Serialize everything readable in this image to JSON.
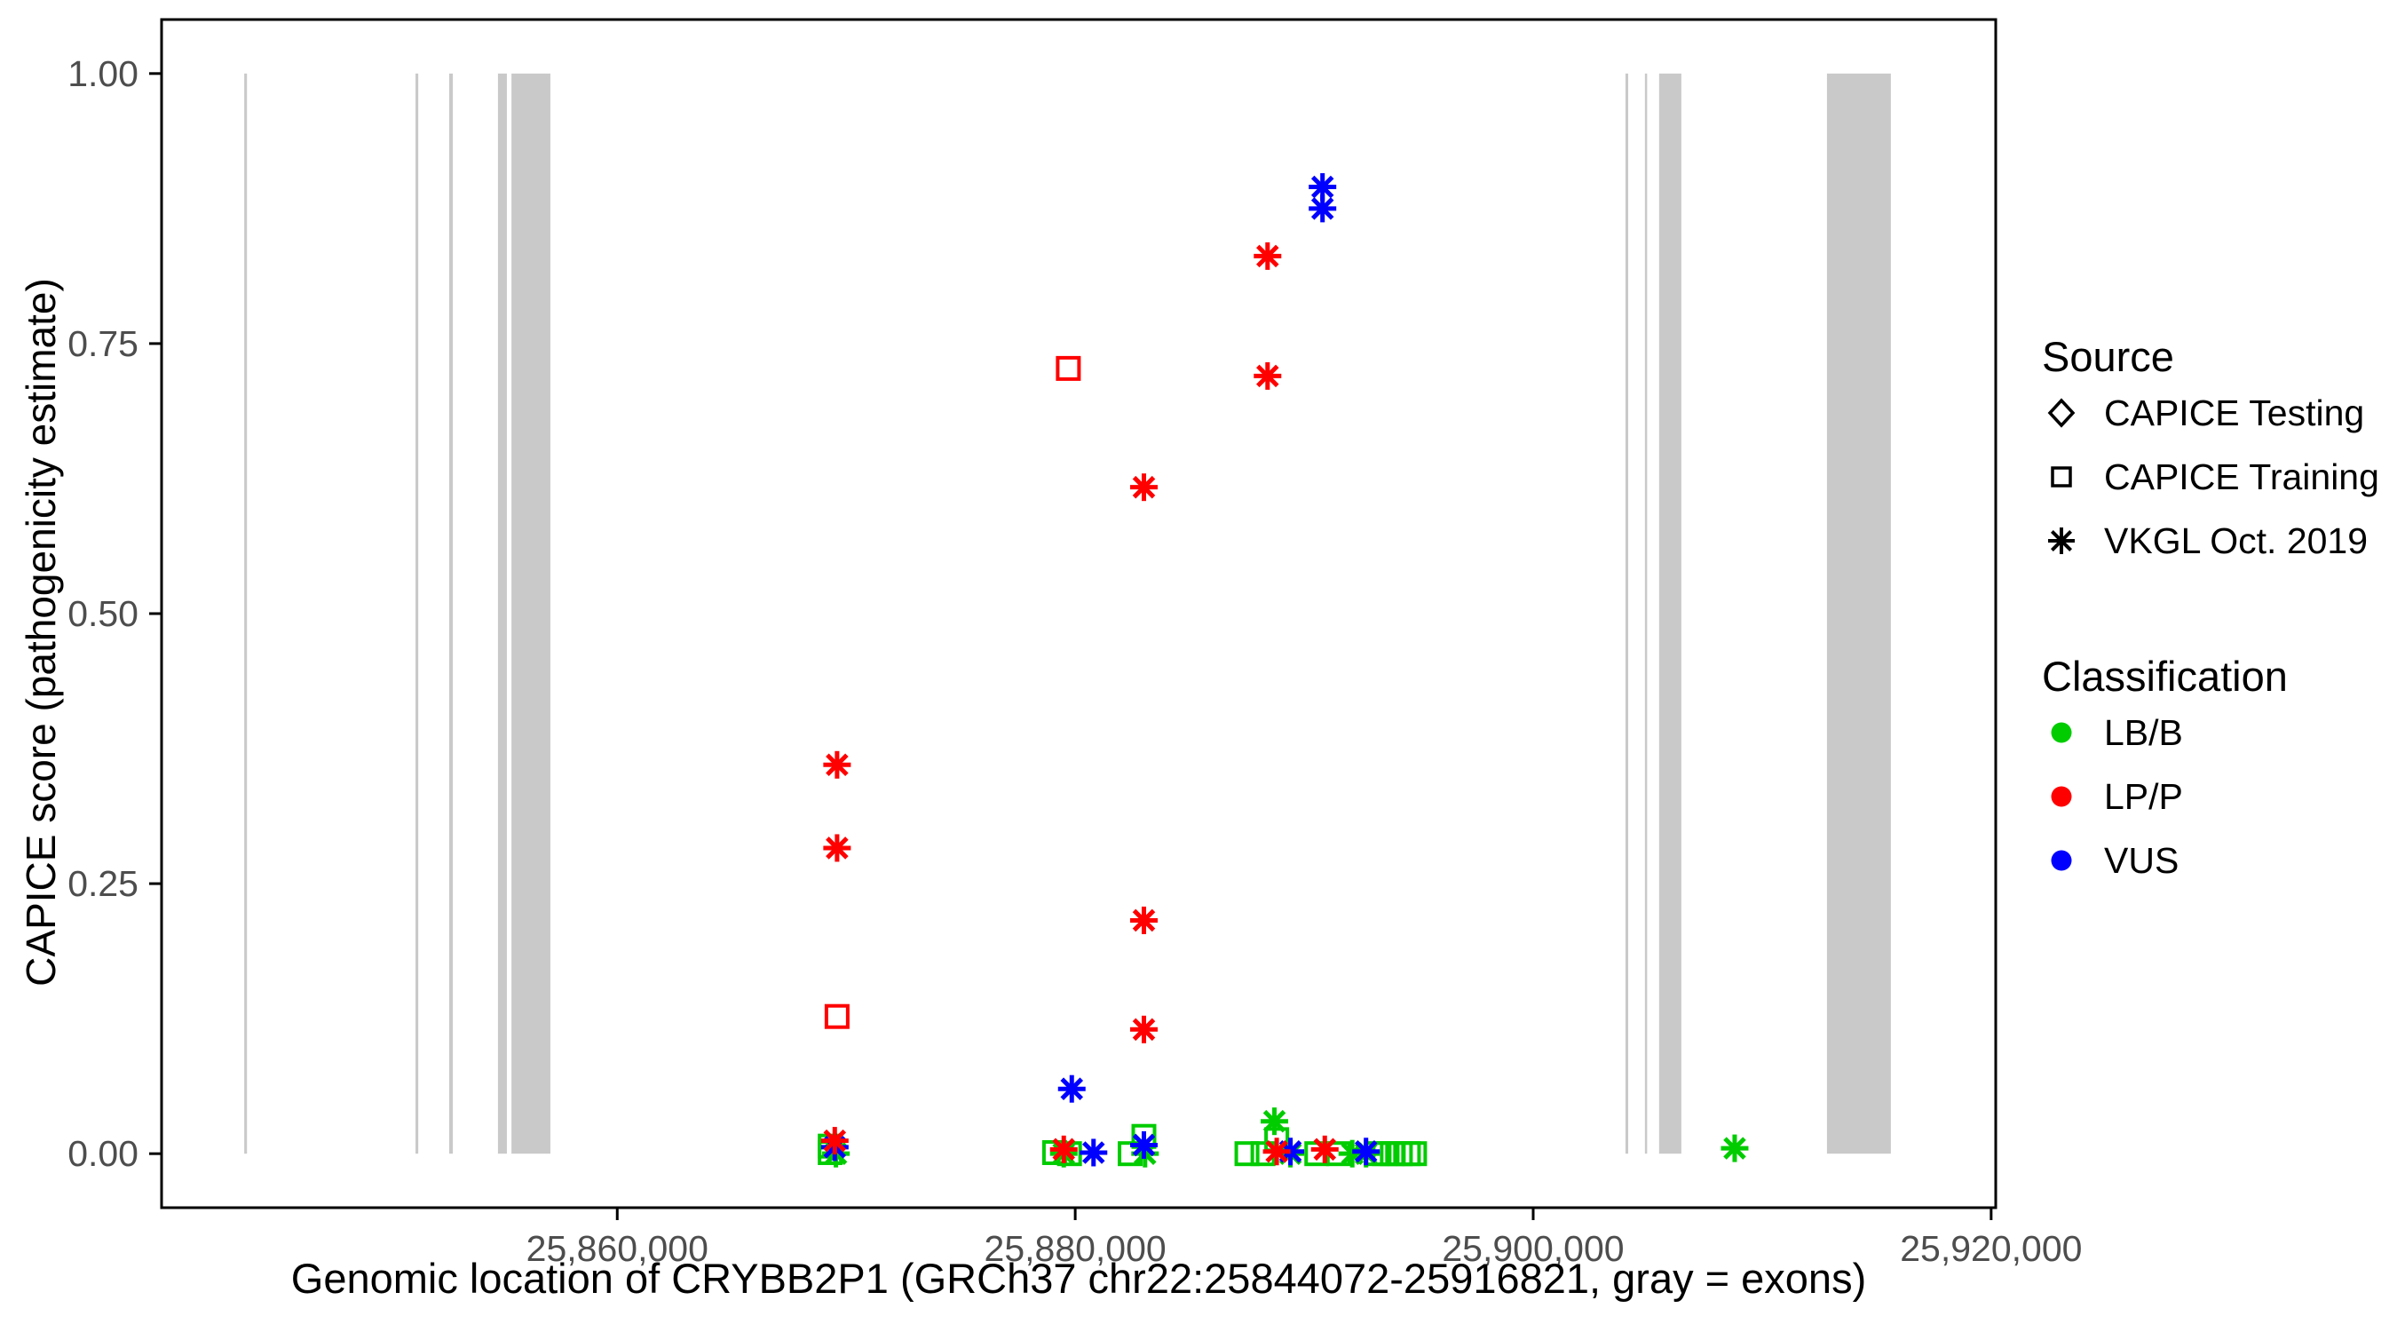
{
  "colors": {
    "background": "#FFFFFF",
    "exon": "#C9C9C9",
    "axis_text": "#4D4D4D",
    "border": "#000000"
  },
  "legend": {
    "source": {
      "title": "Source",
      "items": [
        {
          "label": "CAPICE Testing",
          "shape": "diamond"
        },
        {
          "label": "CAPICE Training",
          "shape": "square"
        },
        {
          "label": "VKGL Oct. 2019",
          "shape": "asterisk"
        }
      ]
    },
    "classification": {
      "title": "Classification",
      "items": [
        {
          "label": "LB/B",
          "color": "#00CC00"
        },
        {
          "label": "LP/P",
          "color": "#FF0000"
        },
        {
          "label": "VUS",
          "color": "#0000FF"
        }
      ]
    }
  },
  "chart_data": {
    "type": "scatter",
    "title": "",
    "xlabel": "Genomic location of CRYBB2P1 (GRCh37 chr22:25844072-25916821, gray = exons)",
    "ylabel": "CAPICE score (pathogenicity estimate)",
    "x_domain": [
      25840100,
      25920200
    ],
    "y_domain": [
      -0.05,
      1.05
    ],
    "grid": false,
    "legend_position": "right",
    "x_ticks": [
      {
        "value": 25860000,
        "label": "25,860,000"
      },
      {
        "value": 25880000,
        "label": "25,880,000"
      },
      {
        "value": 25900000,
        "label": "25,900,000"
      },
      {
        "value": 25920000,
        "label": "25,920,000"
      }
    ],
    "y_ticks": [
      {
        "value": 0.0,
        "label": "0.00"
      },
      {
        "value": 0.25,
        "label": "0.25"
      },
      {
        "value": 0.5,
        "label": "0.50"
      },
      {
        "value": 0.75,
        "label": "0.75"
      },
      {
        "value": 1.0,
        "label": "1.00"
      }
    ],
    "exons_bp": [
      [
        25843710,
        25843830
      ],
      [
        25851190,
        25851310
      ],
      [
        25852660,
        25852820
      ],
      [
        25854790,
        25855180
      ],
      [
        25855380,
        25857080
      ],
      [
        25904030,
        25904150
      ],
      [
        25904880,
        25904960
      ],
      [
        25905500,
        25906470
      ],
      [
        25912830,
        25915620
      ]
    ],
    "points": [
      {
        "x": 25869600,
        "y": 0.36,
        "source": "VKGL Oct. 2019",
        "classification": "LP/P"
      },
      {
        "x": 25869600,
        "y": 0.283,
        "source": "VKGL Oct. 2019",
        "classification": "LP/P"
      },
      {
        "x": 25869600,
        "y": 0.127,
        "source": "CAPICE Training",
        "classification": "LP/P"
      },
      {
        "x": 25869500,
        "y": 0.012,
        "source": "VKGL Oct. 2019",
        "classification": "LP/P"
      },
      {
        "x": 25869500,
        "y": 0.006,
        "source": "VKGL Oct. 2019",
        "classification": "VUS"
      },
      {
        "x": 25869300,
        "y": 0.007,
        "source": "CAPICE Training",
        "classification": "LB/B"
      },
      {
        "x": 25869300,
        "y": 0.001,
        "source": "CAPICE Training",
        "classification": "LB/B"
      },
      {
        "x": 25869550,
        "y": 0.0,
        "source": "VKGL Oct. 2019",
        "classification": "LB/B"
      },
      {
        "x": 25879700,
        "y": 0.727,
        "source": "CAPICE Training",
        "classification": "LP/P"
      },
      {
        "x": 25883000,
        "y": 0.617,
        "source": "VKGL Oct. 2019",
        "classification": "LP/P"
      },
      {
        "x": 25883000,
        "y": 0.216,
        "source": "VKGL Oct. 2019",
        "classification": "LP/P"
      },
      {
        "x": 25883000,
        "y": 0.115,
        "source": "VKGL Oct. 2019",
        "classification": "LP/P"
      },
      {
        "x": 25879850,
        "y": 0.06,
        "source": "VKGL Oct. 2019",
        "classification": "VUS"
      },
      {
        "x": 25879100,
        "y": 0.001,
        "source": "CAPICE Training",
        "classification": "LB/B"
      },
      {
        "x": 25879500,
        "y": 0.004,
        "source": "VKGL Oct. 2019",
        "classification": "LP/P"
      },
      {
        "x": 25879500,
        "y": 0.0,
        "source": "VKGL Oct. 2019",
        "classification": "LB/B"
      },
      {
        "x": 25879750,
        "y": 0.0,
        "source": "CAPICE Training",
        "classification": "LB/B"
      },
      {
        "x": 25880800,
        "y": 0.001,
        "source": "VKGL Oct. 2019",
        "classification": "VUS"
      },
      {
        "x": 25883000,
        "y": 0.016,
        "source": "CAPICE Training",
        "classification": "LB/B"
      },
      {
        "x": 25883000,
        "y": 0.008,
        "source": "VKGL Oct. 2019",
        "classification": "VUS"
      },
      {
        "x": 25882400,
        "y": 0.0,
        "source": "CAPICE Training",
        "classification": "LB/B"
      },
      {
        "x": 25883050,
        "y": 0.0,
        "source": "VKGL Oct. 2019",
        "classification": "LB/B"
      },
      {
        "x": 25890800,
        "y": 0.895,
        "source": "VKGL Oct. 2019",
        "classification": "VUS"
      },
      {
        "x": 25890800,
        "y": 0.875,
        "source": "VKGL Oct. 2019",
        "classification": "VUS"
      },
      {
        "x": 25888400,
        "y": 0.831,
        "source": "VKGL Oct. 2019",
        "classification": "LP/P"
      },
      {
        "x": 25888400,
        "y": 0.72,
        "source": "VKGL Oct. 2019",
        "classification": "LP/P"
      },
      {
        "x": 25888700,
        "y": 0.03,
        "source": "VKGL Oct. 2019",
        "classification": "LB/B"
      },
      {
        "x": 25888800,
        "y": 0.013,
        "source": "CAPICE Training",
        "classification": "LB/B"
      },
      {
        "x": 25887500,
        "y": 0.0,
        "source": "CAPICE Training",
        "classification": "LB/B"
      },
      {
        "x": 25888200,
        "y": 0.0,
        "source": "CAPICE Training",
        "classification": "LB/B"
      },
      {
        "x": 25888800,
        "y": 0.002,
        "source": "VKGL Oct. 2019",
        "classification": "LP/P"
      },
      {
        "x": 25889400,
        "y": 0.002,
        "source": "VKGL Oct. 2019",
        "classification": "VUS"
      },
      {
        "x": 25889400,
        "y": 0.0,
        "source": "VKGL Oct. 2019",
        "classification": "LB/B"
      },
      {
        "x": 25890550,
        "y": 0.0,
        "source": "CAPICE Training",
        "classification": "LB/B"
      },
      {
        "x": 25890900,
        "y": 0.004,
        "source": "VKGL Oct. 2019",
        "classification": "LP/P"
      },
      {
        "x": 25891500,
        "y": 0.0,
        "source": "CAPICE Training",
        "classification": "LB/B"
      },
      {
        "x": 25892100,
        "y": 0.0,
        "source": "VKGL Oct. 2019",
        "classification": "LB/B"
      },
      {
        "x": 25892700,
        "y": 0.002,
        "source": "VKGL Oct. 2019",
        "classification": "VUS"
      },
      {
        "x": 25892700,
        "y": 0.0,
        "source": "VKGL Oct. 2019",
        "classification": "LB/B"
      },
      {
        "x": 25893150,
        "y": 0.0,
        "source": "CAPICE Training",
        "classification": "LB/B"
      },
      {
        "x": 25893500,
        "y": 0.0,
        "source": "CAPICE Training",
        "classification": "LB/B"
      },
      {
        "x": 25893850,
        "y": 0.0,
        "source": "CAPICE Training",
        "classification": "LB/B"
      },
      {
        "x": 25894200,
        "y": 0.0,
        "source": "CAPICE Training",
        "classification": "LB/B"
      },
      {
        "x": 25894550,
        "y": 0.0,
        "source": "CAPICE Training",
        "classification": "LB/B"
      },
      {
        "x": 25894820,
        "y": 0.0,
        "source": "CAPICE Training",
        "classification": "LB/B"
      },
      {
        "x": 25908800,
        "y": 0.005,
        "source": "VKGL Oct. 2019",
        "classification": "LB/B"
      }
    ]
  }
}
